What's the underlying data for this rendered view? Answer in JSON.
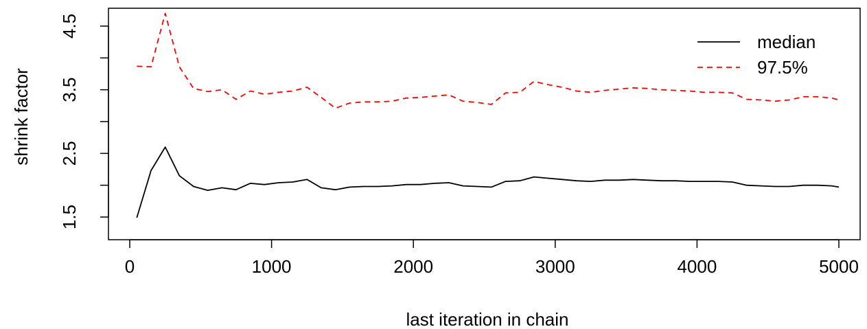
{
  "chart_data": {
    "type": "line",
    "title": "",
    "xlabel": "last iteration in chain",
    "ylabel": "shrink factor",
    "xlim": [
      0,
      5000
    ],
    "ylim": [
      1.5,
      4.7
    ],
    "x_ticks": [
      0,
      1000,
      2000,
      3000,
      4000,
      5000
    ],
    "x_tick_labels": [
      "0",
      "1000",
      "2000",
      "3000",
      "4000",
      "5000"
    ],
    "y_ticks": [
      1.5,
      2.0,
      2.5,
      3.0,
      3.5,
      4.0,
      4.5
    ],
    "y_tick_labels": [
      "1.5",
      "",
      "2.5",
      "",
      "3.5",
      "",
      "4.5"
    ],
    "grid": false,
    "legend_position": "top-right",
    "x": [
      50,
      150,
      250,
      350,
      450,
      550,
      650,
      750,
      850,
      950,
      1050,
      1150,
      1250,
      1350,
      1450,
      1550,
      1650,
      1750,
      1850,
      1950,
      2050,
      2150,
      2250,
      2350,
      2450,
      2550,
      2650,
      2750,
      2850,
      2950,
      3050,
      3150,
      3250,
      3350,
      3450,
      3550,
      3650,
      3750,
      3850,
      3950,
      4050,
      4150,
      4250,
      4350,
      4450,
      4550,
      4650,
      4750,
      4850,
      4950,
      5000
    ],
    "series": [
      {
        "name": "median",
        "color": "#000000",
        "dash": "solid",
        "values": [
          1.49,
          2.23,
          2.6,
          2.15,
          1.98,
          1.92,
          1.96,
          1.93,
          2.03,
          2.01,
          2.04,
          2.05,
          2.09,
          1.96,
          1.93,
          1.97,
          1.98,
          1.98,
          1.99,
          2.01,
          2.01,
          2.03,
          2.04,
          1.99,
          1.98,
          1.97,
          2.06,
          2.07,
          2.13,
          2.11,
          2.09,
          2.07,
          2.06,
          2.08,
          2.08,
          2.09,
          2.08,
          2.07,
          2.07,
          2.06,
          2.06,
          2.06,
          2.05,
          2.0,
          1.99,
          1.98,
          1.98,
          2.0,
          2.0,
          1.99,
          1.97
        ]
      },
      {
        "name": "97.5%",
        "color": "#ff0000",
        "dash": "dashed",
        "values": [
          3.87,
          3.86,
          4.7,
          3.86,
          3.52,
          3.47,
          3.5,
          3.35,
          3.48,
          3.43,
          3.46,
          3.48,
          3.54,
          3.38,
          3.21,
          3.29,
          3.31,
          3.31,
          3.32,
          3.37,
          3.38,
          3.4,
          3.42,
          3.32,
          3.3,
          3.27,
          3.45,
          3.46,
          3.63,
          3.58,
          3.54,
          3.48,
          3.46,
          3.49,
          3.51,
          3.53,
          3.52,
          3.5,
          3.49,
          3.48,
          3.46,
          3.46,
          3.45,
          3.35,
          3.34,
          3.32,
          3.34,
          3.39,
          3.39,
          3.37,
          3.34
        ]
      }
    ]
  }
}
